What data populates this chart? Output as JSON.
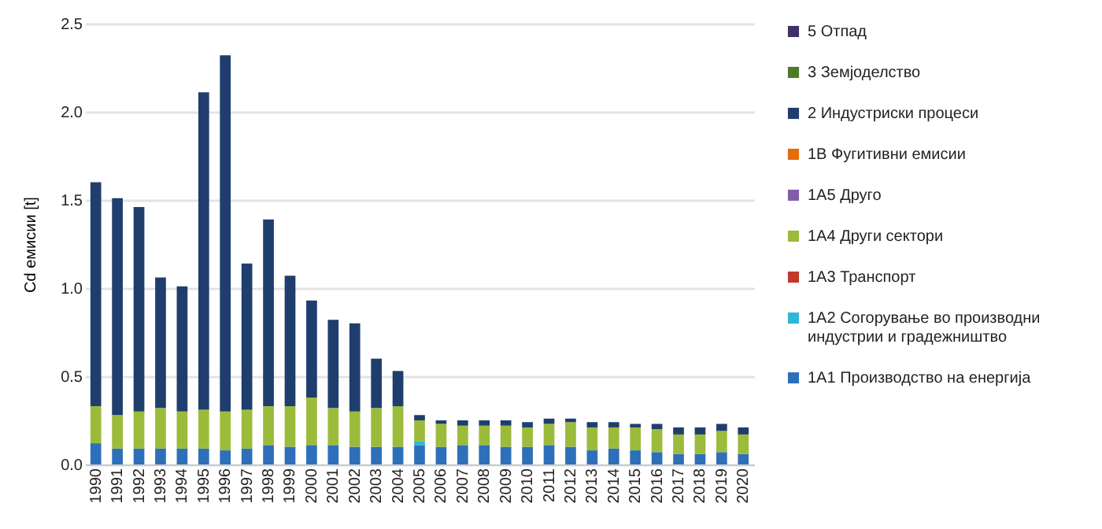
{
  "chart_data": {
    "type": "bar",
    "stacked": true,
    "ylabel": "Cd емисии [t]",
    "categories": [
      "1990",
      "1991",
      "1992",
      "1993",
      "1994",
      "1995",
      "1996",
      "1997",
      "1998",
      "1999",
      "2000",
      "2001",
      "2002",
      "2003",
      "2004",
      "2005",
      "2006",
      "2007",
      "2008",
      "2009",
      "2010",
      "2011",
      "2012",
      "2013",
      "2014",
      "2015",
      "2016",
      "2017",
      "2018",
      "2019",
      "2020"
    ],
    "series": [
      {
        "name": "1A1 Производство на енергија",
        "color": "#2e6fba",
        "values": [
          0.12,
          0.09,
          0.09,
          0.09,
          0.09,
          0.09,
          0.08,
          0.09,
          0.11,
          0.1,
          0.11,
          0.11,
          0.1,
          0.1,
          0.1,
          0.11,
          0.1,
          0.11,
          0.11,
          0.1,
          0.1,
          0.11,
          0.1,
          0.08,
          0.09,
          0.08,
          0.07,
          0.06,
          0.06,
          0.07,
          0.06
        ]
      },
      {
        "name": "1A2 Согорување во производни индустрии и градежништво",
        "color": "#31b6d8",
        "values": [
          0,
          0,
          0,
          0,
          0,
          0,
          0,
          0,
          0,
          0,
          0,
          0,
          0,
          0,
          0,
          0.02,
          0,
          0,
          0,
          0,
          0,
          0,
          0,
          0,
          0,
          0,
          0,
          0,
          0,
          0,
          0
        ]
      },
      {
        "name": "1A3 Транспорт",
        "color": "#c0392b",
        "values": [
          0,
          0,
          0,
          0,
          0,
          0,
          0,
          0,
          0,
          0,
          0,
          0,
          0,
          0,
          0,
          0,
          0,
          0,
          0,
          0,
          0,
          0,
          0,
          0,
          0,
          0,
          0,
          0,
          0,
          0,
          0
        ]
      },
      {
        "name": "1A4 Други сектори",
        "color": "#9bbb3b",
        "values": [
          0.21,
          0.19,
          0.21,
          0.23,
          0.21,
          0.22,
          0.22,
          0.22,
          0.22,
          0.23,
          0.27,
          0.21,
          0.2,
          0.22,
          0.23,
          0.12,
          0.13,
          0.11,
          0.11,
          0.12,
          0.11,
          0.12,
          0.14,
          0.13,
          0.12,
          0.13,
          0.13,
          0.11,
          0.11,
          0.12,
          0.11
        ]
      },
      {
        "name": "1A5 Друго",
        "color": "#7f5fa8",
        "values": [
          0,
          0,
          0,
          0,
          0,
          0,
          0,
          0,
          0,
          0,
          0,
          0,
          0,
          0,
          0,
          0,
          0,
          0,
          0,
          0,
          0,
          0,
          0,
          0,
          0,
          0,
          0,
          0,
          0,
          0,
          0
        ]
      },
      {
        "name": "1B Фугитивни  емисии",
        "color": "#e46c0a",
        "values": [
          0,
          0,
          0,
          0,
          0,
          0,
          0,
          0,
          0,
          0,
          0,
          0,
          0,
          0,
          0,
          0,
          0,
          0,
          0,
          0,
          0,
          0,
          0,
          0,
          0,
          0,
          0,
          0,
          0,
          0,
          0
        ]
      },
      {
        "name": "2 Индустриски процеси",
        "color": "#1f3e6e",
        "values": [
          1.27,
          1.23,
          1.16,
          0.74,
          0.71,
          1.8,
          2.02,
          0.83,
          1.06,
          0.74,
          0.55,
          0.5,
          0.5,
          0.28,
          0.2,
          0.03,
          0.02,
          0.03,
          0.03,
          0.03,
          0.03,
          0.03,
          0.02,
          0.03,
          0.03,
          0.02,
          0.03,
          0.04,
          0.04,
          0.04,
          0.04
        ]
      },
      {
        "name": "3 Земјоделство",
        "color": "#4f7a28",
        "values": [
          0,
          0,
          0,
          0,
          0,
          0,
          0,
          0,
          0,
          0,
          0,
          0,
          0,
          0,
          0,
          0,
          0,
          0,
          0,
          0,
          0,
          0,
          0,
          0,
          0,
          0,
          0,
          0,
          0,
          0,
          0
        ]
      },
      {
        "name": "5 Отпад",
        "color": "#3f2f6b",
        "values": [
          0,
          0,
          0,
          0,
          0,
          0,
          0,
          0,
          0,
          0,
          0,
          0,
          0,
          0,
          0,
          0,
          0,
          0,
          0,
          0,
          0,
          0,
          0,
          0,
          0,
          0,
          0,
          0,
          0,
          0,
          0
        ]
      }
    ],
    "ylim": [
      0,
      2.5
    ],
    "yticks": [
      {
        "value": 0,
        "label": "0.0"
      },
      0.5,
      {
        "value": 1,
        "label": "1.0"
      },
      1.5,
      {
        "value": 2,
        "label": "2.0"
      },
      2.5
    ],
    "grid": "y",
    "legend": "right"
  }
}
